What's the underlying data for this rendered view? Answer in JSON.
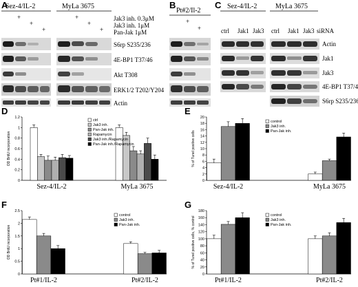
{
  "panels": {
    "A": {
      "letter": "A",
      "groups": [
        "Sez-4/IL-2",
        "MyLa 3675"
      ],
      "treatments": [
        "Jak3 inh. 0.3μM",
        "Jak3 inh. 1μM",
        "Pan-Jak 1μM"
      ],
      "plus_sign": "+",
      "bands": [
        "S6rp S235/236",
        "4E-BP1 T37/46",
        "Akt T308",
        "ERK1/2 T202/Y204",
        "Actin"
      ]
    },
    "B": {
      "letter": "B",
      "group": "Pt#2/Il-2",
      "plus_sign": "+"
    },
    "C": {
      "letter": "C",
      "groups": [
        "Sez-4/IL-2",
        "MyLa 3675"
      ],
      "lanes": [
        "ctrl",
        "Jak1",
        "Jak3",
        "ctrl",
        "Jak1",
        "Jak3"
      ],
      "lane_suffix": "siRNA",
      "bands": [
        "Actin",
        "Jak1",
        "Jak3",
        "4E-BP1 T37/46",
        "S6rp S235/236"
      ]
    }
  },
  "charts": [
    {
      "letter": "D",
      "chart_data": {
        "type": "bar",
        "categories": [
          "Sez-4/IL-2",
          "MyLa 3675"
        ],
        "series": [
          {
            "name": "ctrl",
            "color": "#ffffff",
            "values": [
              1.0,
              1.0
            ],
            "errors": [
              0.05,
              0.05
            ]
          },
          {
            "name": "Jak3 inh.",
            "color": "#c8c8c8",
            "values": [
              0.45,
              0.85
            ],
            "errors": [
              0.04,
              0.06
            ]
          },
          {
            "name": "Pan-Jak inh.",
            "color": "#8a8a8a",
            "values": [
              0.38,
              0.56
            ],
            "errors": [
              0.08,
              0.08
            ]
          },
          {
            "name": "Rapamycin",
            "color": "#b0b0b0",
            "values": [
              0.38,
              0.5
            ],
            "errors": [
              0.06,
              0.06
            ]
          },
          {
            "name": "Jak3 inh./Rapamycin",
            "color": "#4a4a4a",
            "values": [
              0.43,
              0.7
            ],
            "errors": [
              0.06,
              0.1
            ]
          },
          {
            "name": "Pan-Jak inh./Rapamycin",
            "color": "#000000",
            "values": [
              0.42,
              0.4
            ],
            "errors": [
              0.05,
              0.08
            ]
          }
        ],
        "ylabel": "OD BrdU incorporation",
        "ylim": [
          0,
          1.2
        ],
        "yticks": [
          "0",
          "0.2",
          "0.4",
          "0.6",
          "0.8",
          "1",
          "1.2"
        ]
      }
    },
    {
      "letter": "E",
      "chart_data": {
        "type": "bar",
        "categories": [
          "Sez-4/IL-2",
          "MyLa 3675"
        ],
        "series": [
          {
            "name": "control",
            "color": "#ffffff",
            "values": [
              5.5,
              2.0
            ],
            "errors": [
              1.2,
              0.6
            ]
          },
          {
            "name": "Jak3 inh.",
            "color": "#8a8a8a",
            "values": [
              17.0,
              6.2
            ],
            "errors": [
              1.5,
              0.5
            ]
          },
          {
            "name": "Pan-Jak inh.",
            "color": "#000000",
            "values": [
              18.0,
              13.7
            ],
            "errors": [
              1.5,
              1.2
            ]
          }
        ],
        "ylabel": "% of Tunel positive cells",
        "ylim": [
          0,
          20
        ],
        "yticks": [
          "0",
          "2",
          "4",
          "6",
          "8",
          "10",
          "12",
          "14",
          "16",
          "18",
          "20"
        ]
      }
    },
    {
      "letter": "F",
      "chart_data": {
        "type": "bar",
        "categories": [
          "Pt#1/IL-2",
          "Pt#2/IL-2"
        ],
        "series": [
          {
            "name": "control",
            "color": "#ffffff",
            "values": [
              2.15,
              1.2
            ],
            "errors": [
              0.1,
              0.07
            ]
          },
          {
            "name": "Jak3 inh.",
            "color": "#8a8a8a",
            "values": [
              1.5,
              0.8
            ],
            "errors": [
              0.1,
              0.05
            ]
          },
          {
            "name": "Pan-Jak inh.",
            "color": "#000000",
            "values": [
              1.0,
              0.83
            ],
            "errors": [
              0.12,
              0.1
            ]
          }
        ],
        "ylabel": "OD BrdU incorporation",
        "ylim": [
          0,
          2.5
        ],
        "yticks": [
          "0",
          "0.5",
          "1",
          "1.5",
          "2",
          "2.5"
        ]
      }
    },
    {
      "letter": "G",
      "chart_data": {
        "type": "bar",
        "categories": [
          "Pt#1/IL-2",
          "Pt#2/IL-2"
        ],
        "series": [
          {
            "name": "control",
            "color": "#ffffff",
            "values": [
              100,
              100
            ],
            "errors": [
              10,
              8
            ]
          },
          {
            "name": "Jak3 inh.",
            "color": "#8a8a8a",
            "values": [
              141,
              108
            ],
            "errors": [
              8,
              9
            ]
          },
          {
            "name": "Pan-Jak inh.",
            "color": "#000000",
            "values": [
              160,
              146
            ],
            "errors": [
              14,
              12
            ]
          }
        ],
        "ylabel": "% of Tunel positive cells, % control",
        "ylim": [
          0,
          180
        ],
        "yticks": [
          "0",
          "20",
          "40",
          "60",
          "80",
          "100",
          "120",
          "140",
          "160",
          "180"
        ]
      }
    }
  ]
}
